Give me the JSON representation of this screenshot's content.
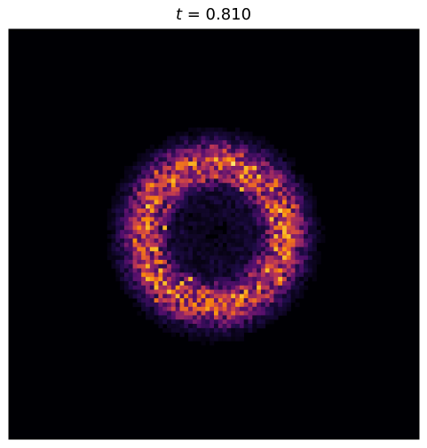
{
  "chart_data": {
    "type": "heatmap",
    "title_var": "t",
    "title_rest": " = 0.810",
    "colormap": "inferno",
    "background": "#000004",
    "grid_size": [
      96,
      96
    ],
    "features": {
      "ring_center": [
        48,
        48
      ],
      "ring_radius_cells": 16.5,
      "ring_width_cells": 5.0,
      "hot_spots": [
        [
          54,
          37
        ],
        [
          42,
          58
        ],
        [
          36,
          46
        ]
      ]
    },
    "seed": 810
  }
}
